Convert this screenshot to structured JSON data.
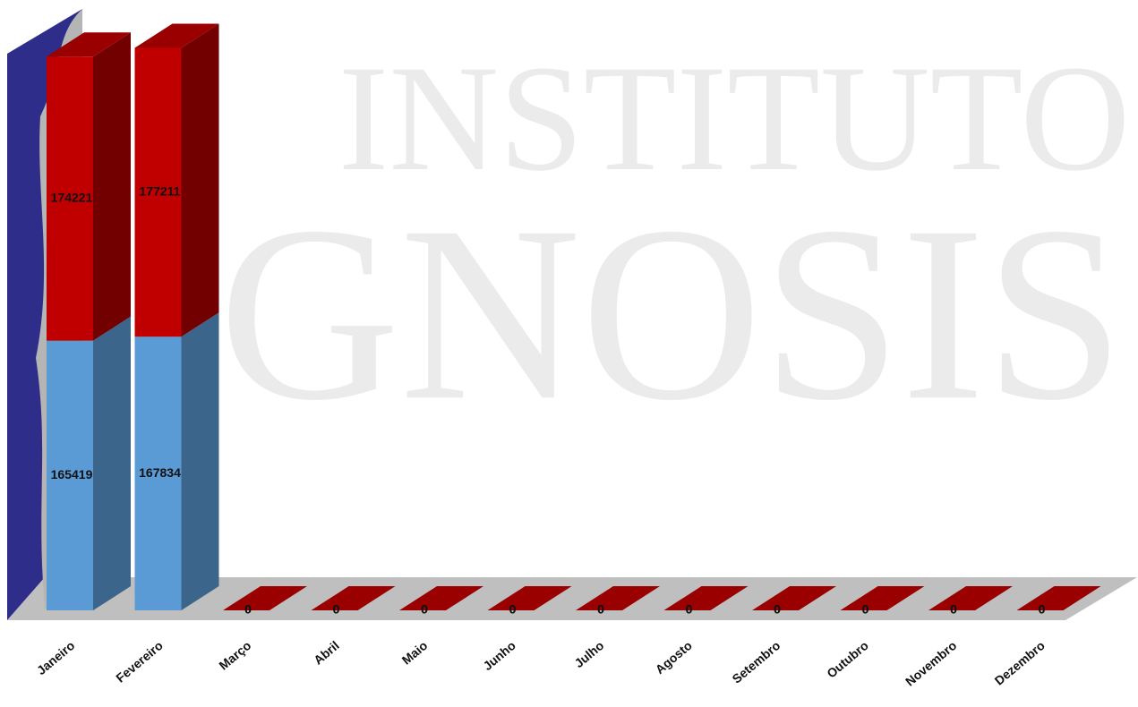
{
  "chart_data": {
    "type": "bar3d_stacked",
    "watermark": [
      "INSTITUTO",
      "GNOSIS"
    ],
    "categories": [
      "Janeiro",
      "Fevereiro",
      "Março",
      "Abril",
      "Maio",
      "Junho",
      "Julho",
      "Agosto",
      "Setembro",
      "Outubro",
      "Novembro",
      "Dezembro"
    ],
    "series": [
      {
        "color": "#5b9bd5",
        "values": [
          165419,
          167834,
          0,
          0,
          0,
          0,
          0,
          0,
          0,
          0,
          0,
          0
        ]
      },
      {
        "color": "#c00000",
        "values": [
          174221,
          177211,
          0,
          0,
          0,
          0,
          0,
          0,
          0,
          0,
          0,
          0
        ]
      }
    ],
    "ylim": [
      0,
      370000
    ]
  }
}
